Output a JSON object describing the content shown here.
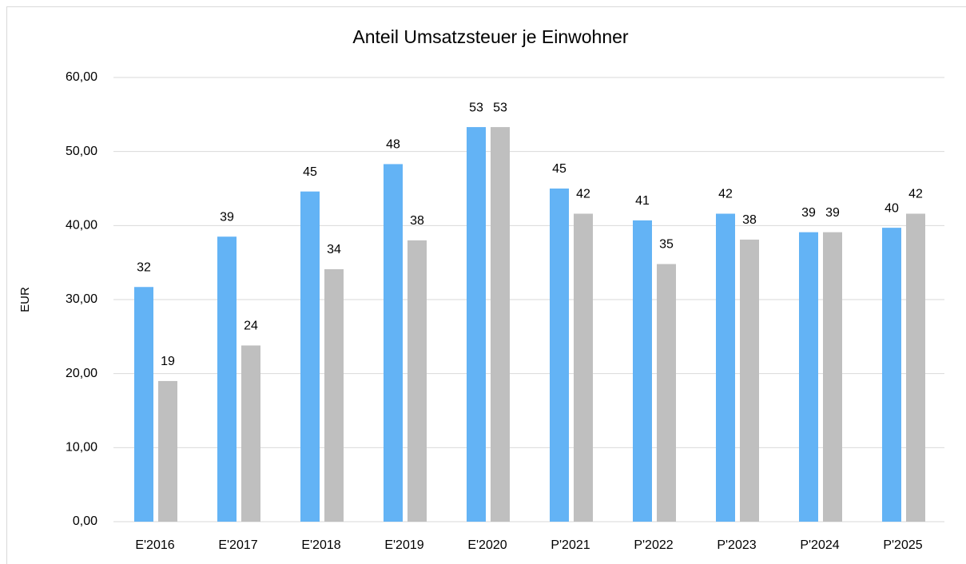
{
  "chart_data": {
    "type": "bar",
    "title": "Anteil Umsatzsteuer je Einwohner",
    "y_label": "EUR",
    "categories": [
      "E'2016",
      "E'2017",
      "E'2018",
      "E'2019",
      "E'2020",
      "P'2021",
      "P'2022",
      "P'2023",
      "P'2024",
      "P'2025"
    ],
    "series": [
      {
        "color": "#63b3f5",
        "values": [
          31.7,
          38.5,
          44.6,
          48.3,
          53.3,
          45.0,
          40.7,
          41.6,
          39.1,
          39.7
        ],
        "value_labels": [
          "32",
          "39",
          "45",
          "48",
          "53",
          "45",
          "41",
          "42",
          "39",
          "40"
        ]
      },
      {
        "color": "#bfbfbf",
        "values": [
          19.0,
          23.8,
          34.1,
          38.0,
          53.3,
          41.6,
          34.8,
          38.1,
          39.1,
          41.6
        ],
        "value_labels": [
          "19",
          "24",
          "34",
          "38",
          "53",
          "42",
          "35",
          "38",
          "39",
          "42"
        ]
      }
    ],
    "ylim": [
      0,
      60
    ],
    "yticks": [
      {
        "value": 0,
        "label": "0,00"
      },
      {
        "value": 10,
        "label": "10,00"
      },
      {
        "value": 20,
        "label": "20,00"
      },
      {
        "value": 30,
        "label": "30,00"
      },
      {
        "value": 40,
        "label": "40,00"
      },
      {
        "value": 50,
        "label": "50,00"
      },
      {
        "value": 60,
        "label": "60,00"
      }
    ],
    "grid": true
  }
}
